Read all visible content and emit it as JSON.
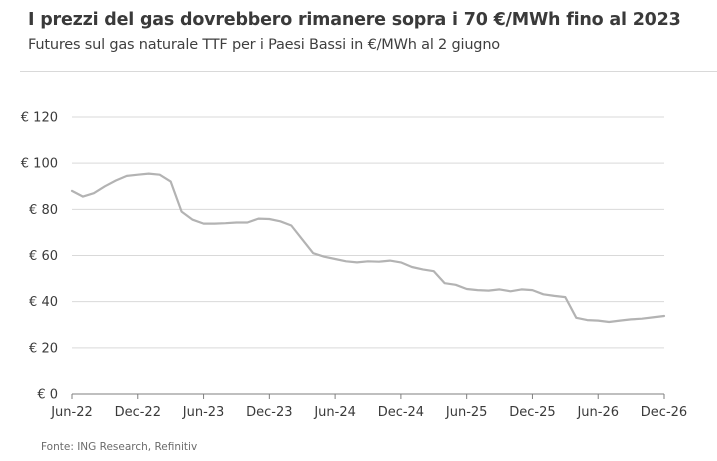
{
  "title": "I prezzi del gas dovrebbero rimanere sopra i 70 €/MWh fino al 2023",
  "subtitle": "Futures sul gas naturale TTF per i Paesi Bassi in €/MWh al 2 giugno",
  "source": "Fonte: ING Research, Refinitiv",
  "colors": {
    "line": "#b3b3b3",
    "grid": "#d9d9d9",
    "axis": "#7f7f7f"
  },
  "chart_data": {
    "type": "line",
    "title": "I prezzi del gas dovrebbero rimanere sopra i 70 €/MWh fino al 2023",
    "subtitle": "Futures sul gas naturale TTF per i Paesi Bassi in €/MWh al 2 giugno",
    "xlabel": "",
    "ylabel": "",
    "ylim": [
      0,
      120
    ],
    "yticks": [
      0,
      20,
      40,
      60,
      80,
      100,
      120
    ],
    "ytick_labels": [
      "€ 0",
      "€ 20",
      "€ 40",
      "€ 60",
      "€ 80",
      "€ 100",
      "€ 120"
    ],
    "xticks": [
      "Jun-22",
      "Dec-22",
      "Jun-23",
      "Dec-23",
      "Jun-24",
      "Dec-24",
      "Jun-25",
      "Dec-25",
      "Jun-26",
      "Dec-26"
    ],
    "grid": "horizontal",
    "legend": "none",
    "x": [
      "Jun-22",
      "Jul-22",
      "Aug-22",
      "Sep-22",
      "Oct-22",
      "Nov-22",
      "Dec-22",
      "Jan-23",
      "Feb-23",
      "Mar-23",
      "Apr-23",
      "May-23",
      "Jun-23",
      "Jul-23",
      "Aug-23",
      "Sep-23",
      "Oct-23",
      "Nov-23",
      "Dec-23",
      "Jan-24",
      "Feb-24",
      "Mar-24",
      "Apr-24",
      "May-24",
      "Jun-24",
      "Jul-24",
      "Aug-24",
      "Sep-24",
      "Oct-24",
      "Nov-24",
      "Dec-24",
      "Jan-25",
      "Feb-25",
      "Mar-25",
      "Apr-25",
      "May-25",
      "Jun-25",
      "Jul-25",
      "Aug-25",
      "Sep-25",
      "Oct-25",
      "Nov-25",
      "Dec-25",
      "Jan-26",
      "Feb-26",
      "Mar-26",
      "Apr-26",
      "May-26",
      "Jun-26",
      "Jul-26",
      "Aug-26",
      "Sep-26",
      "Oct-26",
      "Nov-26",
      "Dec-26"
    ],
    "series": [
      {
        "values": [
          88,
          85.5,
          87,
          90,
          92.5,
          94.5,
          95,
          95.5,
          95,
          92,
          79,
          75.5,
          73.8,
          73.8,
          74,
          74.3,
          74.3,
          76,
          75.8,
          74.8,
          73,
          67,
          61,
          59.5,
          58.5,
          57.5,
          57,
          57.5,
          57.3,
          57.8,
          57,
          55,
          54,
          53.2,
          48,
          47.3,
          45.5,
          45,
          44.8,
          45.3,
          44.5,
          45.3,
          45,
          43.2,
          42.5,
          42,
          33,
          32,
          31.8,
          31.2,
          31.8,
          32.3,
          32.6,
          33.2,
          33.8
        ]
      }
    ]
  }
}
